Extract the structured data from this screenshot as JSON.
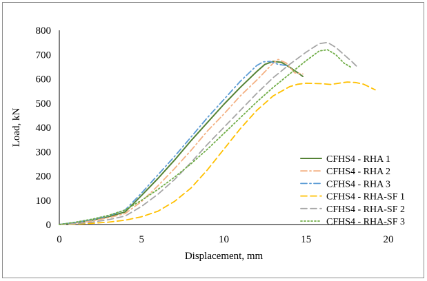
{
  "chart_data": {
    "type": "line",
    "xlabel": "Displacement, mm",
    "ylabel": "Load, kN",
    "xlim": [
      0,
      20
    ],
    "ylim": [
      0,
      800
    ],
    "x_ticks": [
      "0",
      "5",
      "10",
      "15",
      "20"
    ],
    "y_ticks": [
      "0",
      "100",
      "200",
      "300",
      "400",
      "500",
      "600",
      "700",
      "800"
    ],
    "grid": false,
    "legend_position": "right",
    "series": [
      {
        "name": "CFHS4 - RHA 1",
        "color": "#548235",
        "dash": "solid",
        "x": [
          0,
          1,
          2,
          3,
          4,
          5,
          6,
          7,
          8,
          9,
          10,
          11,
          12,
          12.5,
          13,
          13.5,
          14,
          14.5,
          14.8
        ],
        "y": [
          0,
          8,
          18,
          32,
          52,
          120,
          190,
          265,
          345,
          420,
          495,
          565,
          630,
          660,
          672,
          668,
          648,
          625,
          610
        ]
      },
      {
        "name": "CFHS4 - RHA 2",
        "color": "#f4b183",
        "dash": "dashdot",
        "x": [
          0,
          1,
          2,
          3,
          4,
          5,
          6,
          7,
          8,
          9,
          10,
          11,
          12,
          13,
          13.3,
          13.8,
          14.3,
          14.8
        ],
        "y": [
          0,
          6,
          15,
          28,
          45,
          95,
          160,
          230,
          305,
          385,
          455,
          530,
          595,
          665,
          680,
          665,
          625,
          620
        ]
      },
      {
        "name": "CFHS4 - RHA 3",
        "color": "#5b9bd5",
        "dash": "dashdot",
        "x": [
          0,
          1,
          2,
          3,
          4,
          5,
          6,
          7,
          8,
          9,
          10,
          11,
          12,
          12.4,
          12.8,
          13.3,
          13.8
        ],
        "y": [
          0,
          9,
          20,
          36,
          60,
          130,
          205,
          280,
          360,
          440,
          515,
          590,
          655,
          670,
          672,
          660,
          655
        ]
      },
      {
        "name": "CFHS4 - RHA-SF 1",
        "color": "#ffc000",
        "dash": "dash",
        "x": [
          0,
          1,
          2,
          3,
          4,
          5,
          6,
          7,
          8,
          9,
          10,
          11,
          12,
          13,
          14,
          14.5,
          15,
          16,
          16.5,
          17,
          17.5,
          18,
          18.5,
          19.2
        ],
        "y": [
          0,
          2,
          5,
          10,
          18,
          32,
          55,
          95,
          150,
          225,
          310,
          395,
          470,
          530,
          568,
          578,
          582,
          580,
          577,
          582,
          587,
          585,
          578,
          555
        ]
      },
      {
        "name": "CFHS4 - RHA-SF 2",
        "color": "#a6a6a6",
        "dash": "dash",
        "x": [
          0,
          1,
          2,
          3,
          4,
          5,
          6,
          7,
          8,
          9,
          10,
          11,
          12,
          13,
          14,
          15,
          15.8,
          16.3,
          16.8,
          17.3,
          17.8,
          18.1
        ],
        "y": [
          0,
          4,
          10,
          20,
          35,
          75,
          125,
          185,
          255,
          330,
          400,
          470,
          540,
          605,
          660,
          710,
          745,
          750,
          730,
          700,
          670,
          650
        ]
      },
      {
        "name": "CFHS4 - RHA-SF 3",
        "color": "#70ad47",
        "dash": "dot",
        "x": [
          0,
          1,
          2,
          3,
          4,
          5,
          6,
          7,
          8,
          9,
          10,
          11,
          12,
          13,
          14,
          15,
          15.8,
          16.3,
          16.8,
          17.3,
          17.8
        ],
        "y": [
          0,
          10,
          22,
          38,
          60,
          100,
          145,
          195,
          250,
          310,
          375,
          440,
          505,
          565,
          620,
          675,
          715,
          720,
          700,
          665,
          645
        ]
      }
    ]
  }
}
